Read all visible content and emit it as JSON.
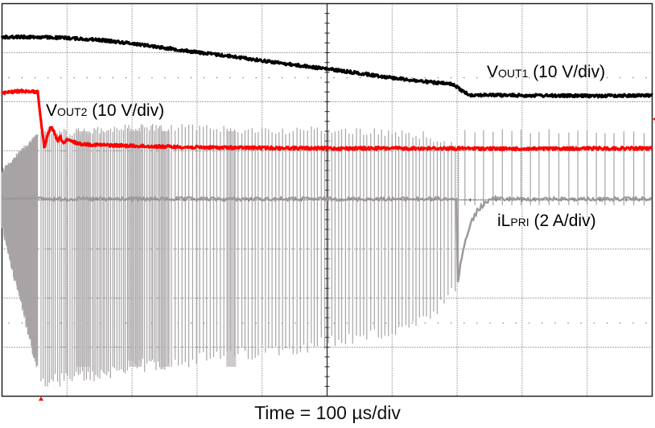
{
  "chart_data": {
    "type": "line",
    "title": "",
    "xlabel": "Time = 100 µs/div",
    "ylabel": "",
    "grid": true,
    "divisions": {
      "x": 10,
      "y": 8
    },
    "x_unit": "µs",
    "x_per_div": 100,
    "xlim": [
      0,
      1000
    ],
    "series": [
      {
        "name": "VOUT1",
        "label_main": "V",
        "label_sub": "OUT1",
        "label_rest": " (10 V/div)",
        "scale": "10 V/div",
        "color": "#000000",
        "note": "y in divisions from top of screen",
        "x": [
          0,
          50,
          100,
          150,
          200,
          250,
          300,
          350,
          400,
          450,
          500,
          550,
          600,
          650,
          690,
          700,
          710,
          720,
          800,
          900,
          1000
        ],
        "y": [
          0.68,
          0.68,
          0.7,
          0.74,
          0.81,
          0.9,
          0.99,
          1.07,
          1.16,
          1.25,
          1.33,
          1.42,
          1.51,
          1.59,
          1.64,
          1.7,
          1.8,
          1.86,
          1.87,
          1.88,
          1.87
        ]
      },
      {
        "name": "VOUT2",
        "label_main": "V",
        "label_sub": "OUT2",
        "label_rest": " (10 V/div)",
        "scale": "10 V/div",
        "color": "#ff0000",
        "x": [
          0,
          30,
          55,
          60,
          65,
          70,
          75,
          80,
          85,
          90,
          95,
          100,
          110,
          120,
          150,
          200,
          300,
          400,
          500,
          600,
          700,
          800,
          900,
          1000
        ],
        "y": [
          1.82,
          1.78,
          1.8,
          2.4,
          2.95,
          2.7,
          2.5,
          2.62,
          2.8,
          2.72,
          2.85,
          2.78,
          2.82,
          2.86,
          2.88,
          2.9,
          2.93,
          2.94,
          2.95,
          2.95,
          2.95,
          2.96,
          2.95,
          2.95
        ]
      },
      {
        "name": "iLPRI",
        "label_main": "iL",
        "label_sub": "PRI",
        "label_rest": " (2 A/div)",
        "scale": "2 A/div",
        "color": "#a8a4a6",
        "baseline_div": 3.98,
        "burst_end_x": 705,
        "envelope_top_div": [
          3.35,
          2.55,
          2.55,
          2.5,
          2.45,
          2.45,
          2.5,
          2.5,
          2.55,
          2.6,
          2.85
        ],
        "envelope_bottom_div": [
          4.65,
          7.85,
          7.8,
          7.7,
          7.55,
          7.4,
          7.25,
          7.05,
          6.85,
          6.65,
          5.9
        ],
        "envelope_x": [
          0,
          60,
          100,
          150,
          200,
          300,
          400,
          500,
          600,
          650,
          705
        ]
      }
    ],
    "annotations": [
      {
        "text": "VOUT1 (10 V/div)",
        "series": "VOUT1"
      },
      {
        "text": "VOUT2 (10 V/div)",
        "series": "VOUT2"
      },
      {
        "text": "iLPRI (2 A/div)",
        "series": "iLPRI"
      }
    ]
  },
  "labels": {
    "vout1": {
      "main": "V",
      "sub": "OUT1",
      "rest": " (10 V/div)"
    },
    "vout2": {
      "main": "V",
      "sub": "OUT2",
      "rest": " (10 V/div)"
    },
    "ilpri": {
      "main": "iL",
      "sub": "PRI",
      "rest": " (2 A/div)"
    },
    "time": "Time = 100 µs/div"
  }
}
